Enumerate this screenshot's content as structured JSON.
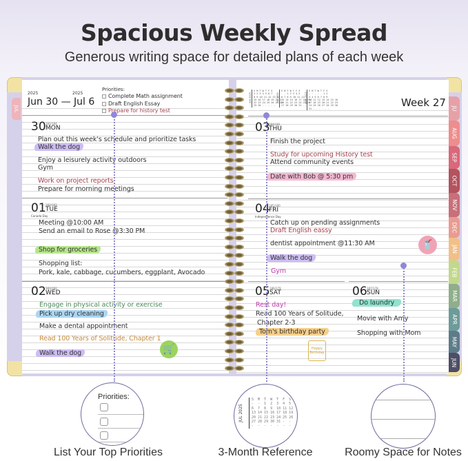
{
  "header": {
    "title": "Spacious Weekly Spread",
    "subtitle": "Generous writing space for detailed plans of each week"
  },
  "left_page": {
    "year_start": "2025",
    "year_end": "2025",
    "date_range": "Jun 30 — Jul 6",
    "priorities_label": "Priorities:",
    "priorities": [
      "Complete Math assignment",
      "Draft English Essay",
      "Prepare for history test"
    ],
    "cover_tab": "JUL",
    "days": [
      {
        "num": "30",
        "dow": "MON",
        "doy": "181/184",
        "entries": [
          "Plan out this week's schedule and prioritize tasks",
          "Walk the dog",
          "Enjoy a leisurely activity outdoors",
          "Gym",
          "Work on project reports",
          "Prepare for morning meetings"
        ]
      },
      {
        "num": "01",
        "dow": "TUE",
        "doy": "182/183",
        "holiday": "Canada Day",
        "entries": [
          "Meeting @10:00 AM",
          "Send an email to Rose @3:30 PM",
          "Shop for groceries",
          "Shopping list:",
          "Pork, kale, cabbage, cucumbers, eggplant, Avocado"
        ]
      },
      {
        "num": "02",
        "dow": "WED",
        "doy": "183/182",
        "entries": [
          "Engage in physical activity or exercise",
          "Pick up dry cleaning",
          "Make a dental appointment",
          "Read 100 Years of Solitude, Chapter 1",
          "Walk the dog"
        ]
      }
    ]
  },
  "right_page": {
    "week": "Week 27",
    "mini_calendars": [
      {
        "label": "JUN 2025",
        "rows": [
          "S M T W T F S",
          "1 2 3 4 5 6 7",
          "8 9 10 11 12 13 14",
          "15 16 17 18 19 20 21",
          "22 23 24 25 26 27 28",
          "29 30 - - - - -"
        ]
      },
      {
        "label": "JUL 2025",
        "rows": [
          "S M T W T F S",
          "- - 1 2 3 4 5",
          "6 7 8 9 10 11 12",
          "13 14 15 16 17 18 19",
          "20 21 22 23 24 25 26",
          "27 28 29 30 31 - -"
        ]
      },
      {
        "label": "AUG 2025",
        "rows": [
          "S M T W T F S",
          "- - - - - 1 2",
          "3 4 5 6 7 8 9",
          "10 11 12 13 14 15 16",
          "17 18 19 20 21 22 23",
          "24 25 26 27 28 29 30",
          "31 - - - - - -"
        ]
      }
    ],
    "days": [
      {
        "num": "03",
        "dow": "THU",
        "doy": "184/181",
        "entries": [
          "Finish the project",
          "Study for upcoming History test",
          "Attend community events",
          "Date with Bob @ 5:30 pm"
        ]
      },
      {
        "num": "04",
        "dow": "FRI",
        "doy": "185/180",
        "holiday": "Independence Day",
        "entries": [
          "Catch up on pending assignments",
          "Draft English eassy",
          "dentist appointment @11:30 AM",
          "Walk the dog",
          "Gym"
        ]
      },
      {
        "num": "05",
        "dow": "SAT",
        "doy": "186/179",
        "entries": [
          "Rest day!",
          "Read 100 Years of Solitude,",
          "Chapter 2-3",
          "Tom's birthday party"
        ]
      },
      {
        "num": "06",
        "dow": "SUN",
        "doy": "187/178",
        "entries": [
          "Do laundry",
          "Movie with Amy",
          "Shopping with Mom"
        ]
      }
    ],
    "sticker_cake_text": "Happy Birthday"
  },
  "month_tabs": [
    {
      "label": "JU",
      "color": "#e6a1a8"
    },
    {
      "label": "AUG",
      "color": "#ee8d8d"
    },
    {
      "label": "SEP",
      "color": "#d8687a"
    },
    {
      "label": "OCT",
      "color": "#b3535e"
    },
    {
      "label": "NOV",
      "color": "#c86f79"
    },
    {
      "label": "DEC",
      "color": "#e99b91"
    },
    {
      "label": "JAN",
      "color": "#f1c089"
    },
    {
      "label": "FEB",
      "color": "#c2d88b"
    },
    {
      "label": "MAR",
      "color": "#8fae8a"
    },
    {
      "label": "APR",
      "color": "#6d9b99"
    },
    {
      "label": "MAY",
      "color": "#5d7c89"
    },
    {
      "label": "JUN",
      "color": "#4e4e66"
    }
  ],
  "callouts": [
    {
      "caption": "List Your Top Priorities",
      "label": "Priorities:"
    },
    {
      "caption": "3-Month Reference",
      "cal_label": "JUL 2025",
      "rows": [
        "S  M  T  W  T  F  S",
        "-  -  1  2  3  4  5",
        "6  7  8  9  10 11 12",
        "13 14 15 16 17 18 19",
        "20 21 22 23 24 25 26",
        "27 28 29 30 31 -  -",
        "-  -  -  -  -  -  -"
      ]
    },
    {
      "caption": "Roomy Space for Notes"
    }
  ],
  "colors": {
    "highlight_purple": "#cdbdf3",
    "highlight_green": "#b7e68c",
    "highlight_blue": "#abd6f2",
    "highlight_pink": "#f5b8d2",
    "highlight_orange": "#f6cf8b",
    "highlight_teal": "#8fe4d0",
    "accent_dot": "#8f87d9",
    "cover": "#d6d1ea"
  }
}
